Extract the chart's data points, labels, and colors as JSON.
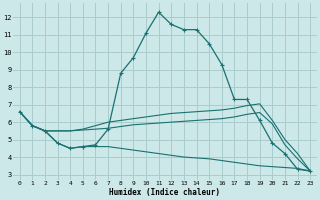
{
  "xlabel": "Humidex (Indice chaleur)",
  "bg_color": "#cce8e8",
  "grid_color": "#aacccc",
  "line_color": "#1a7070",
  "xlim": [
    -0.5,
    23.5
  ],
  "ylim": [
    2.7,
    12.8
  ],
  "xticks": [
    0,
    1,
    2,
    3,
    4,
    5,
    6,
    7,
    8,
    9,
    10,
    11,
    12,
    13,
    14,
    15,
    16,
    17,
    18,
    19,
    20,
    21,
    22,
    23
  ],
  "yticks": [
    3,
    4,
    5,
    6,
    7,
    8,
    9,
    10,
    11,
    12
  ],
  "line1_x": [
    0,
    1,
    2,
    3,
    4,
    5,
    6,
    7,
    8,
    9,
    10,
    11,
    12,
    13,
    14,
    15,
    16,
    17,
    18,
    19,
    20,
    21,
    22,
    23
  ],
  "line1_y": [
    6.6,
    5.8,
    5.5,
    4.8,
    4.5,
    4.6,
    4.7,
    5.6,
    8.8,
    9.7,
    11.1,
    12.3,
    11.6,
    11.3,
    11.3,
    10.5,
    9.3,
    7.3,
    7.3,
    6.1,
    4.8,
    4.2,
    3.3,
    3.2
  ],
  "line2_x": [
    0,
    1,
    2,
    3,
    4,
    5,
    6,
    7,
    8,
    9,
    10,
    11,
    12,
    13,
    14,
    15,
    16,
    17,
    18,
    19,
    20,
    21,
    22,
    23
  ],
  "line2_y": [
    6.6,
    5.8,
    5.5,
    5.5,
    5.5,
    5.6,
    5.8,
    6.0,
    6.1,
    6.2,
    6.3,
    6.4,
    6.5,
    6.55,
    6.6,
    6.65,
    6.7,
    6.8,
    6.95,
    7.05,
    6.1,
    5.0,
    4.2,
    3.2
  ],
  "line3_x": [
    0,
    1,
    2,
    3,
    4,
    5,
    6,
    7,
    8,
    9,
    10,
    11,
    12,
    13,
    14,
    15,
    16,
    17,
    18,
    19,
    20,
    21,
    22,
    23
  ],
  "line3_y": [
    6.6,
    5.8,
    5.5,
    5.5,
    5.5,
    5.55,
    5.6,
    5.65,
    5.75,
    5.85,
    5.9,
    5.95,
    6.0,
    6.05,
    6.1,
    6.15,
    6.2,
    6.3,
    6.45,
    6.55,
    5.9,
    4.7,
    3.9,
    3.2
  ],
  "line4_x": [
    0,
    1,
    2,
    3,
    4,
    5,
    6,
    7,
    8,
    9,
    10,
    11,
    12,
    13,
    14,
    15,
    16,
    17,
    18,
    19,
    20,
    21,
    22,
    23
  ],
  "line4_y": [
    6.6,
    5.8,
    5.5,
    4.8,
    4.5,
    4.6,
    4.6,
    4.6,
    4.5,
    4.4,
    4.3,
    4.2,
    4.1,
    4.0,
    3.95,
    3.9,
    3.8,
    3.7,
    3.6,
    3.5,
    3.45,
    3.4,
    3.35,
    3.2
  ]
}
